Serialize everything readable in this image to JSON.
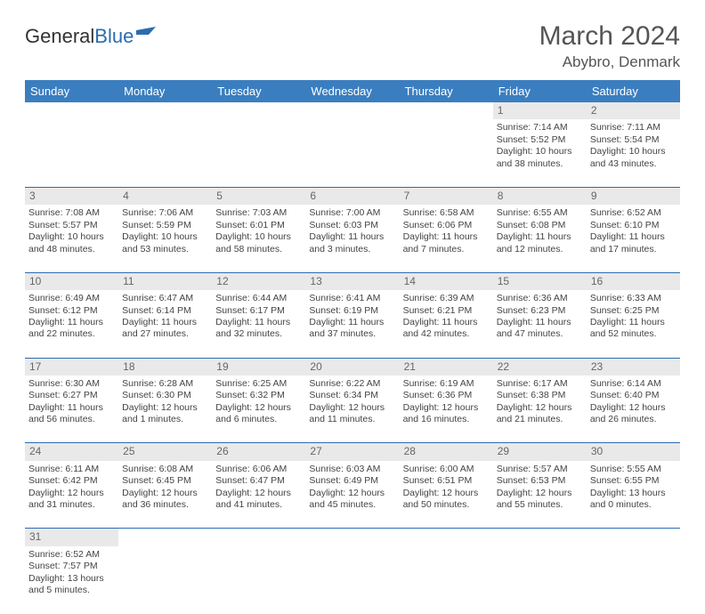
{
  "logo": {
    "text1": "General",
    "text2": "Blue"
  },
  "title": "March 2024",
  "location": "Abybro, Denmark",
  "weekdays": [
    "Sunday",
    "Monday",
    "Tuesday",
    "Wednesday",
    "Thursday",
    "Friday",
    "Saturday"
  ],
  "colors": {
    "header_bg": "#3b7ec0",
    "daynum_bg": "#e9e9e9",
    "border": "#2b6cb0",
    "text": "#444444"
  },
  "weeks": [
    [
      null,
      null,
      null,
      null,
      null,
      {
        "n": "1",
        "sunrise": "7:14 AM",
        "sunset": "5:52 PM",
        "dh": "10",
        "dm": "38"
      },
      {
        "n": "2",
        "sunrise": "7:11 AM",
        "sunset": "5:54 PM",
        "dh": "10",
        "dm": "43"
      }
    ],
    [
      {
        "n": "3",
        "sunrise": "7:08 AM",
        "sunset": "5:57 PM",
        "dh": "10",
        "dm": "48"
      },
      {
        "n": "4",
        "sunrise": "7:06 AM",
        "sunset": "5:59 PM",
        "dh": "10",
        "dm": "53"
      },
      {
        "n": "5",
        "sunrise": "7:03 AM",
        "sunset": "6:01 PM",
        "dh": "10",
        "dm": "58"
      },
      {
        "n": "6",
        "sunrise": "7:00 AM",
        "sunset": "6:03 PM",
        "dh": "11",
        "dm": "3"
      },
      {
        "n": "7",
        "sunrise": "6:58 AM",
        "sunset": "6:06 PM",
        "dh": "11",
        "dm": "7"
      },
      {
        "n": "8",
        "sunrise": "6:55 AM",
        "sunset": "6:08 PM",
        "dh": "11",
        "dm": "12"
      },
      {
        "n": "9",
        "sunrise": "6:52 AM",
        "sunset": "6:10 PM",
        "dh": "11",
        "dm": "17"
      }
    ],
    [
      {
        "n": "10",
        "sunrise": "6:49 AM",
        "sunset": "6:12 PM",
        "dh": "11",
        "dm": "22"
      },
      {
        "n": "11",
        "sunrise": "6:47 AM",
        "sunset": "6:14 PM",
        "dh": "11",
        "dm": "27"
      },
      {
        "n": "12",
        "sunrise": "6:44 AM",
        "sunset": "6:17 PM",
        "dh": "11",
        "dm": "32"
      },
      {
        "n": "13",
        "sunrise": "6:41 AM",
        "sunset": "6:19 PM",
        "dh": "11",
        "dm": "37"
      },
      {
        "n": "14",
        "sunrise": "6:39 AM",
        "sunset": "6:21 PM",
        "dh": "11",
        "dm": "42"
      },
      {
        "n": "15",
        "sunrise": "6:36 AM",
        "sunset": "6:23 PM",
        "dh": "11",
        "dm": "47"
      },
      {
        "n": "16",
        "sunrise": "6:33 AM",
        "sunset": "6:25 PM",
        "dh": "11",
        "dm": "52"
      }
    ],
    [
      {
        "n": "17",
        "sunrise": "6:30 AM",
        "sunset": "6:27 PM",
        "dh": "11",
        "dm": "56"
      },
      {
        "n": "18",
        "sunrise": "6:28 AM",
        "sunset": "6:30 PM",
        "dh": "12",
        "dm": "1"
      },
      {
        "n": "19",
        "sunrise": "6:25 AM",
        "sunset": "6:32 PM",
        "dh": "12",
        "dm": "6"
      },
      {
        "n": "20",
        "sunrise": "6:22 AM",
        "sunset": "6:34 PM",
        "dh": "12",
        "dm": "11"
      },
      {
        "n": "21",
        "sunrise": "6:19 AM",
        "sunset": "6:36 PM",
        "dh": "12",
        "dm": "16"
      },
      {
        "n": "22",
        "sunrise": "6:17 AM",
        "sunset": "6:38 PM",
        "dh": "12",
        "dm": "21"
      },
      {
        "n": "23",
        "sunrise": "6:14 AM",
        "sunset": "6:40 PM",
        "dh": "12",
        "dm": "26"
      }
    ],
    [
      {
        "n": "24",
        "sunrise": "6:11 AM",
        "sunset": "6:42 PM",
        "dh": "12",
        "dm": "31"
      },
      {
        "n": "25",
        "sunrise": "6:08 AM",
        "sunset": "6:45 PM",
        "dh": "12",
        "dm": "36"
      },
      {
        "n": "26",
        "sunrise": "6:06 AM",
        "sunset": "6:47 PM",
        "dh": "12",
        "dm": "41"
      },
      {
        "n": "27",
        "sunrise": "6:03 AM",
        "sunset": "6:49 PM",
        "dh": "12",
        "dm": "45"
      },
      {
        "n": "28",
        "sunrise": "6:00 AM",
        "sunset": "6:51 PM",
        "dh": "12",
        "dm": "50"
      },
      {
        "n": "29",
        "sunrise": "5:57 AM",
        "sunset": "6:53 PM",
        "dh": "12",
        "dm": "55"
      },
      {
        "n": "30",
        "sunrise": "5:55 AM",
        "sunset": "6:55 PM",
        "dh": "13",
        "dm": "0"
      }
    ],
    [
      {
        "n": "31",
        "sunrise": "6:52 AM",
        "sunset": "7:57 PM",
        "dh": "13",
        "dm": "5"
      },
      null,
      null,
      null,
      null,
      null,
      null
    ]
  ],
  "labels": {
    "sunrise": "Sunrise:",
    "sunset": "Sunset:",
    "daylight1": "Daylight:",
    "hours": "hours",
    "and": "and",
    "minutes": "minutes."
  }
}
